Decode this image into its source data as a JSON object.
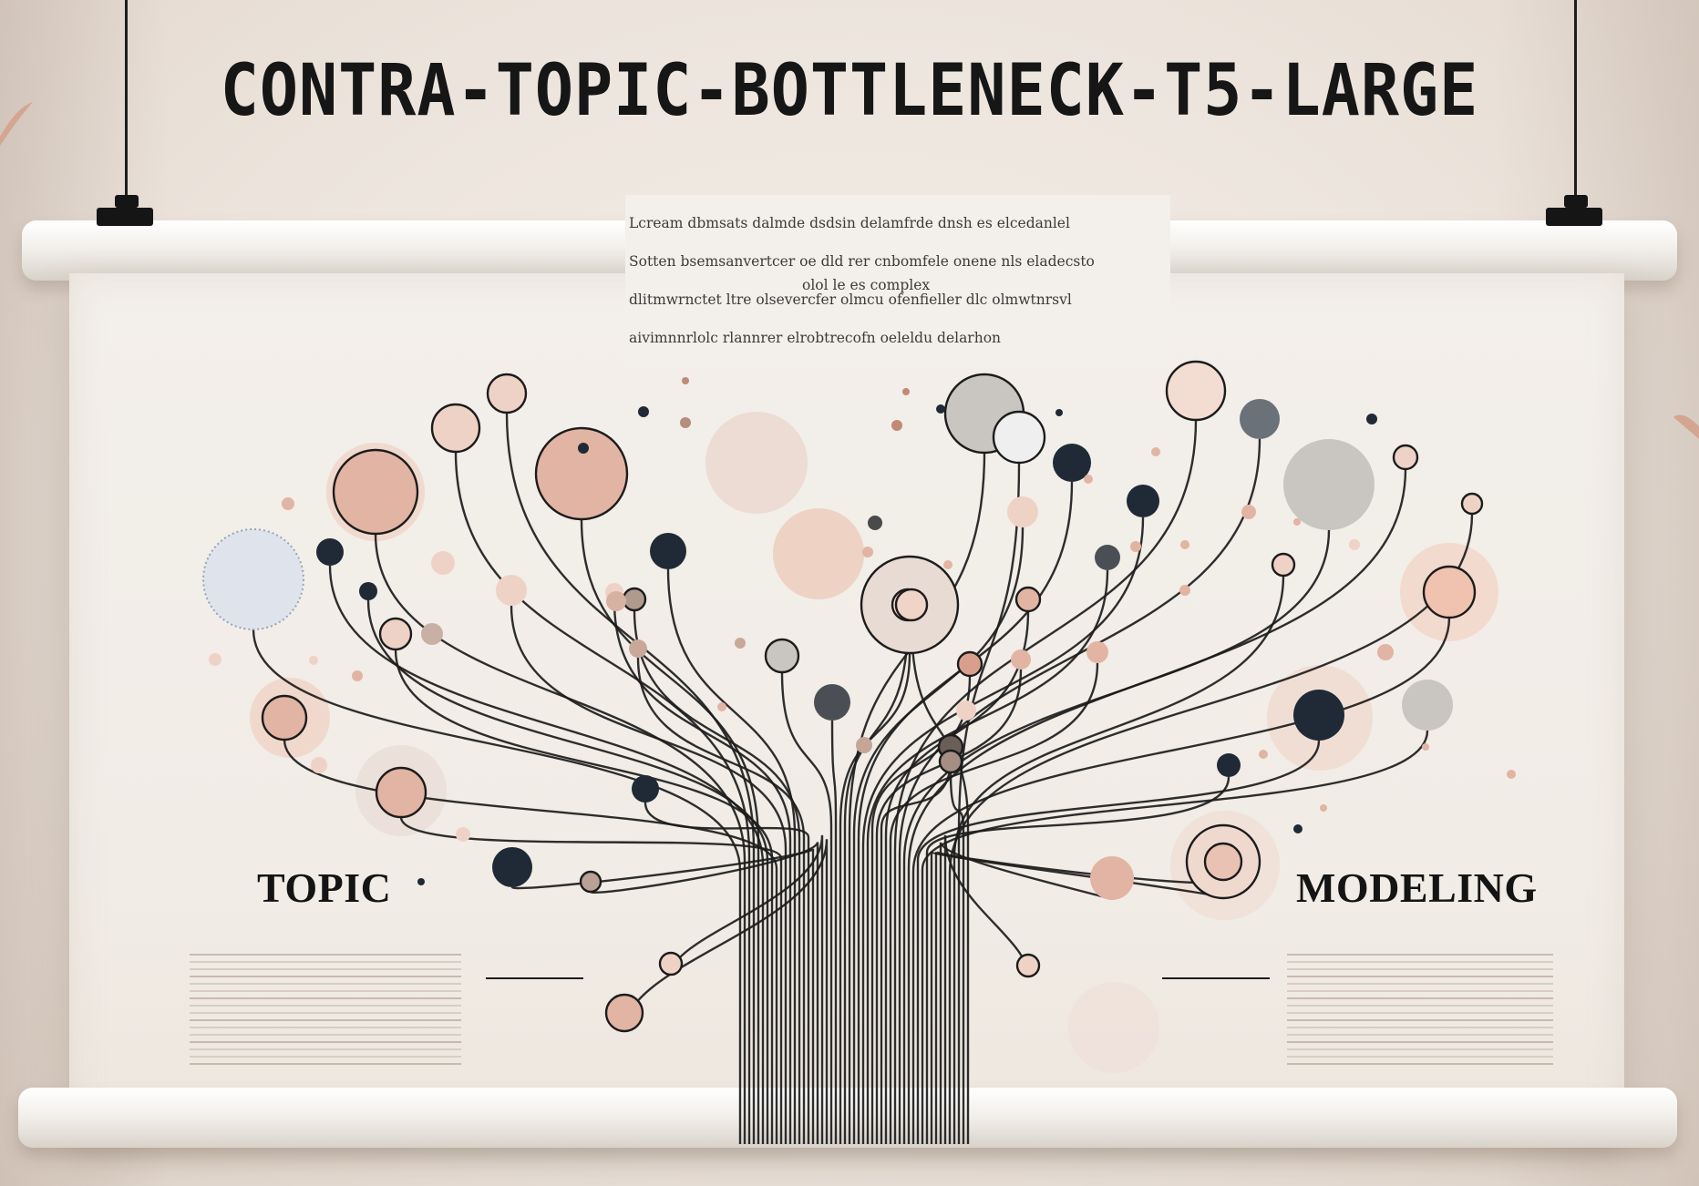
{
  "title": "Contra-Topic-bottleneck-t5-large",
  "blurb": {
    "lines": [
      "Lcream dbmsats dalmde dsdsin delamfrde dnsh es elcedanlel",
      "Sotten bsemsanvertcer oe dld rer cnbomfele onene nls eladecsto",
      "dlitmwrnctet ltre olsevercfer olmcu ofenfieller dlc olmwtnrsvl",
      "aivimnnrlolc rlannrer elrobtrecofn oeleldu delarhon"
    ],
    "tail": "olol le es complex"
  },
  "labels": {
    "left": "TOPIC",
    "right": "MODELING"
  },
  "palette": {
    "ink": "#1f2a36",
    "line": "#1c1c1c",
    "pink": "#e2b4a3",
    "pink_light": "#efd2c6",
    "grey": "#c9c6c2",
    "grey_dark": "#5a5a5a",
    "paper": "#f2eee9"
  }
}
